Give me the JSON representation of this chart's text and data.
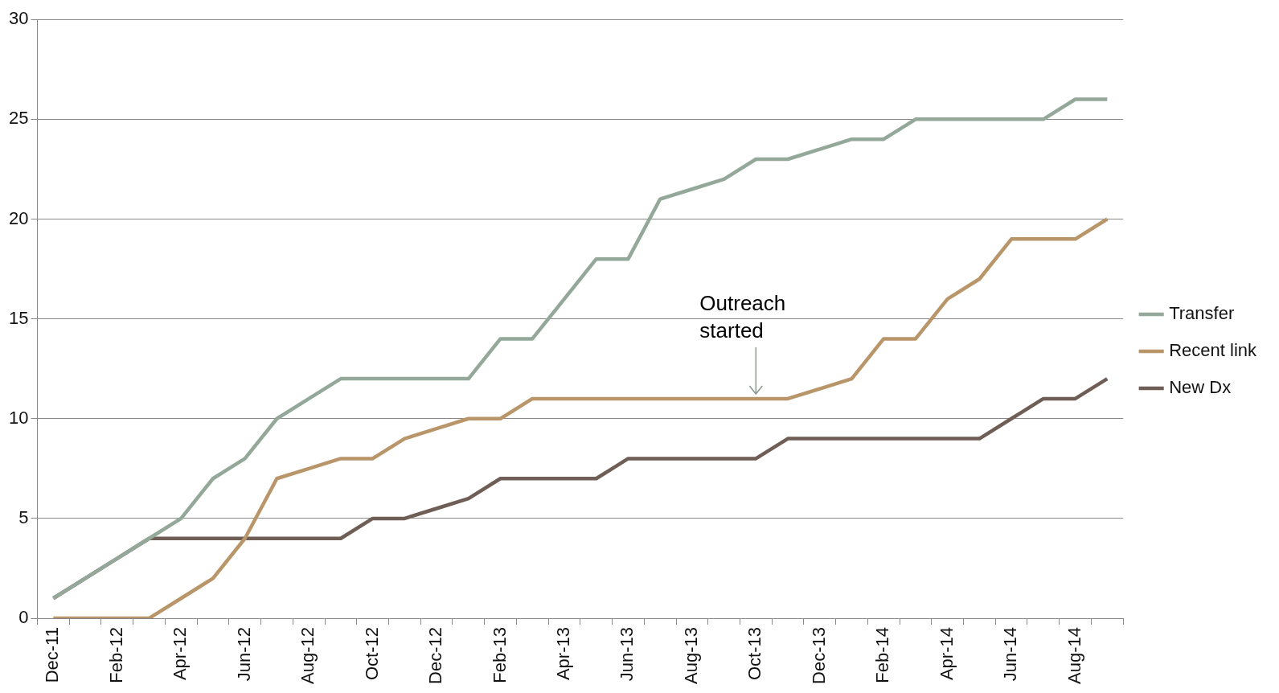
{
  "chart_data": {
    "type": "line",
    "categories": [
      "Dec-11",
      null,
      "Feb-12",
      null,
      "Apr-12",
      null,
      "Jun-12",
      null,
      "Aug-12",
      null,
      "Oct-12",
      null,
      "Dec-12",
      null,
      "Feb-13",
      null,
      "Apr-13",
      null,
      "Jun-13",
      null,
      "Aug-13",
      null,
      "Oct-13",
      null,
      "Dec-13",
      null,
      "Feb-14",
      null,
      "Apr-14",
      null,
      "Jun-14",
      null,
      "Aug-14",
      null
    ],
    "series": [
      {
        "name": "Transfer",
        "color": "#94a89a",
        "values": [
          1,
          2,
          3,
          4,
          5,
          7,
          8,
          10,
          11,
          12,
          12,
          12,
          12,
          12,
          14,
          14,
          16,
          18,
          18,
          21,
          21.5,
          22,
          23,
          23,
          23.5,
          24,
          24,
          25,
          25,
          25,
          25,
          25,
          26,
          26
        ]
      },
      {
        "name": "Recent link",
        "color": "#b8966a",
        "values": [
          0,
          0,
          0,
          0,
          1,
          2,
          4,
          7,
          7.5,
          8,
          8,
          9,
          9.5,
          10,
          10,
          11,
          11,
          11,
          11,
          11,
          11,
          11,
          11,
          11,
          11.5,
          12,
          14,
          14,
          16,
          17,
          19,
          19,
          19,
          20
        ]
      },
      {
        "name": "New Dx",
        "color": "#6f5e56",
        "values": [
          1,
          2,
          3,
          4,
          4,
          4,
          4,
          4,
          4,
          4,
          5,
          5,
          5.5,
          6,
          7,
          7,
          7,
          7,
          8,
          8,
          8,
          8,
          8,
          9,
          9,
          9,
          9,
          9,
          9,
          9,
          10,
          11,
          11,
          12
        ]
      }
    ],
    "ylim": [
      0,
      30
    ],
    "yticks": [
      0,
      5,
      10,
      15,
      20,
      25,
      30
    ],
    "grid": "y",
    "legend": "right",
    "marker": "none",
    "line_style": "solid",
    "annotations": [
      {
        "text": "Outreach\nstarted",
        "x": "Oct-13",
        "y": 11
      }
    ]
  }
}
